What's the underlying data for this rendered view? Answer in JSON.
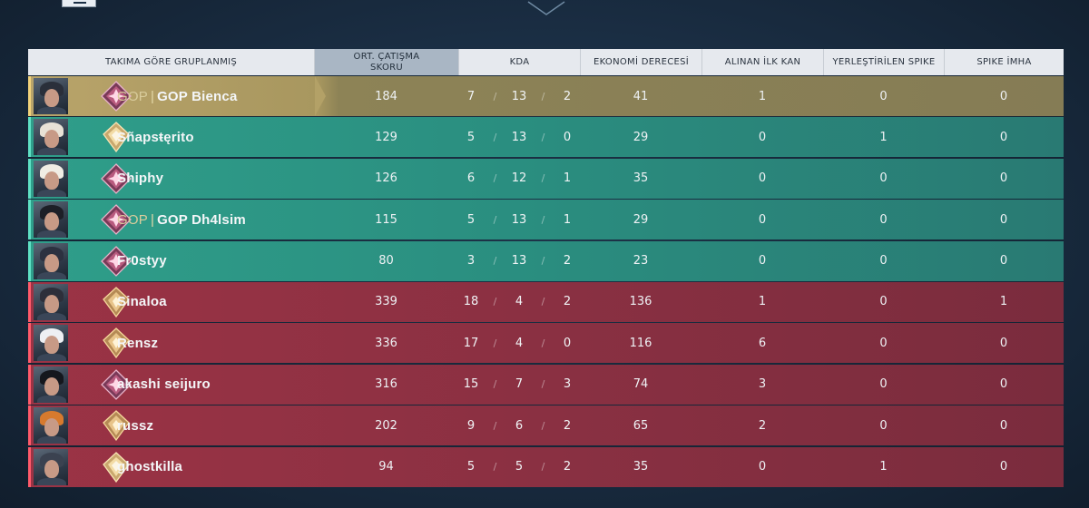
{
  "header": {
    "group_label": "TAKIMA GÖRE GRUPLANMIŞ",
    "acs_label": "ORT. ÇATIŞMA SKORU",
    "kda_label": "KDA",
    "econ_label": "EKONOMİ DERECESİ",
    "fb_label": "ALINAN İLK KAN",
    "plant_label": "YERLEŞTİRİLEN SPIKE",
    "defuse_label": "SPIKE İMHA"
  },
  "colors": {
    "gold": "#b9a46a",
    "teal": "#2f9e8a",
    "red": "#9b3345"
  },
  "players": [
    {
      "tag": "GOP",
      "sep": "|",
      "name": "GOP Bienca",
      "acs": "184",
      "k": "7",
      "d": "13",
      "a": "2",
      "econ": "41",
      "fb": "1",
      "plants": "0",
      "defuses": "0",
      "team": "gold",
      "rank_icon": "ascendant-rank-icon"
    },
    {
      "tag": "",
      "sep": "",
      "name": "Sñapsŧęrito",
      "acs": "129",
      "k": "5",
      "d": "13",
      "a": "0",
      "econ": "29",
      "fb": "0",
      "plants": "1",
      "defuses": "0",
      "team": "teal",
      "rank_icon": "diamond-rank-icon"
    },
    {
      "tag": "",
      "sep": "",
      "name": "Shiphy",
      "acs": "126",
      "k": "6",
      "d": "12",
      "a": "1",
      "econ": "35",
      "fb": "0",
      "plants": "0",
      "defuses": "0",
      "team": "teal",
      "rank_icon": "ascendant-rank-icon"
    },
    {
      "tag": "GOP",
      "sep": "|",
      "name": "GOP Dh4lsim",
      "acs": "115",
      "k": "5",
      "d": "13",
      "a": "1",
      "econ": "29",
      "fb": "0",
      "plants": "0",
      "defuses": "0",
      "team": "teal",
      "rank_icon": "ascendant-rank-icon"
    },
    {
      "tag": "",
      "sep": "",
      "name": "Fr0styy",
      "acs": "80",
      "k": "3",
      "d": "13",
      "a": "2",
      "econ": "23",
      "fb": "0",
      "plants": "0",
      "defuses": "0",
      "team": "teal",
      "rank_icon": "ascendant-rank-icon"
    },
    {
      "tag": "",
      "sep": "",
      "name": "Sinaloa",
      "acs": "339",
      "k": "18",
      "d": "4",
      "a": "2",
      "econ": "136",
      "fb": "1",
      "plants": "0",
      "defuses": "1",
      "team": "red",
      "rank_icon": "immortal-rank-icon"
    },
    {
      "tag": "",
      "sep": "",
      "name": "Rensz",
      "acs": "336",
      "k": "17",
      "d": "4",
      "a": "0",
      "econ": "116",
      "fb": "6",
      "plants": "0",
      "defuses": "0",
      "team": "red",
      "rank_icon": "immortal-rank-icon"
    },
    {
      "tag": "",
      "sep": "",
      "name": "akashi seijuro",
      "acs": "316",
      "k": "15",
      "d": "7",
      "a": "3",
      "econ": "74",
      "fb": "3",
      "plants": "0",
      "defuses": "0",
      "team": "red",
      "rank_icon": "ascendant-rank-icon"
    },
    {
      "tag": "",
      "sep": "",
      "name": "russz",
      "acs": "202",
      "k": "9",
      "d": "6",
      "a": "2",
      "econ": "65",
      "fb": "2",
      "plants": "0",
      "defuses": "0",
      "team": "red",
      "rank_icon": "immortal-rank-icon"
    },
    {
      "tag": "",
      "sep": "",
      "name": "ghostkilla",
      "acs": "94",
      "k": "5",
      "d": "5",
      "a": "2",
      "econ": "35",
      "fb": "0",
      "plants": "1",
      "defuses": "0",
      "team": "red",
      "rank_icon": "diamond-rank-icon"
    }
  ]
}
